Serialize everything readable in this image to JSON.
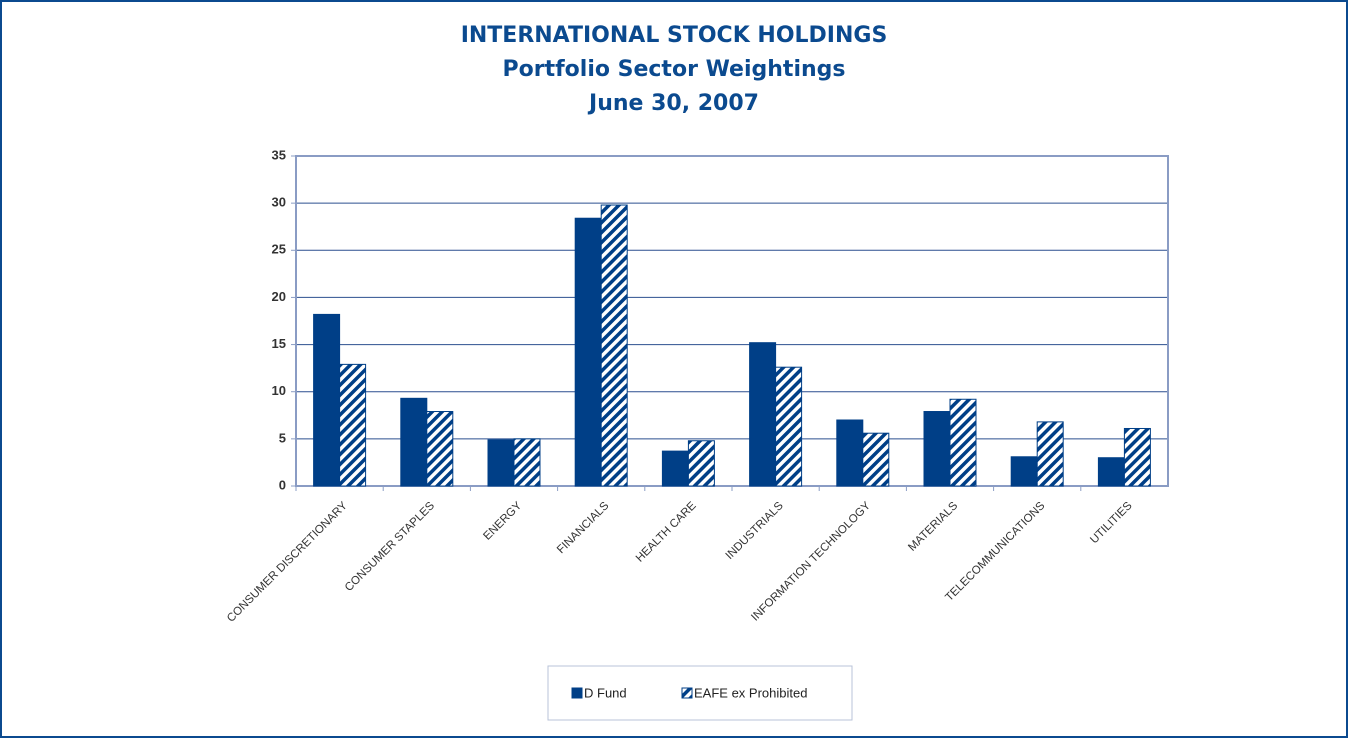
{
  "chart_data": {
    "type": "bar",
    "title": "INTERNATIONAL STOCK HOLDINGS",
    "subtitle": [
      "Portfolio Sector Weightings",
      "June 30, 2007"
    ],
    "categories": [
      "CONSUMER DISCRETIONARY",
      "CONSUMER STAPLES",
      "ENERGY",
      "FINANCIALS",
      "HEALTH CARE",
      "INDUSTRIALS",
      "INFORMATION TECHNOLOGY",
      "MATERIALS",
      "TELECOMMUNICATIONS",
      "UTILITIES"
    ],
    "series": [
      {
        "name": "D Fund",
        "color": "#003f87",
        "hatch": false,
        "values": [
          18.2,
          9.3,
          4.9,
          28.4,
          3.7,
          15.2,
          7.0,
          7.9,
          3.1,
          3.0
        ]
      },
      {
        "name": "EAFE ex Prohibited",
        "color": "#003f87",
        "hatch": true,
        "values": [
          12.9,
          7.9,
          5.0,
          29.8,
          4.8,
          12.6,
          5.6,
          9.2,
          6.8,
          6.1
        ]
      }
    ],
    "ylim": [
      0,
      35
    ],
    "yticks": [
      0,
      5,
      10,
      15,
      20,
      25,
      30,
      35
    ],
    "grid": true,
    "legend": "bottom"
  }
}
